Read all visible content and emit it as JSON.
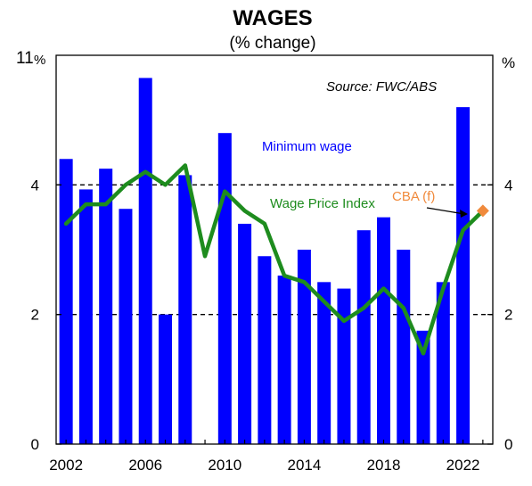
{
  "chart_data": {
    "type": "bar",
    "title": "WAGES",
    "subtitle": "(% change)",
    "source": "Source: FWC/ABS",
    "ylabel_left": "%",
    "ylabel_right": "%",
    "ylim": [
      0,
      6
    ],
    "yticks": [
      0,
      2,
      4
    ],
    "gridlines_dashed_at": [
      2,
      4
    ],
    "xlim": [
      2001.5,
      2023.5
    ],
    "xticks": [
      2002,
      2006,
      2010,
      2014,
      2018,
      2022
    ],
    "series": [
      {
        "name": "Minimum wage",
        "type": "bar",
        "color": "#0000ff",
        "x": [
          2002,
          2003,
          2004,
          2005,
          2006,
          2007,
          2008,
          2009,
          2010,
          2011,
          2012,
          2013,
          2014,
          2015,
          2016,
          2017,
          2018,
          2019,
          2020,
          2021,
          2022
        ],
        "values": [
          4.4,
          3.93,
          4.25,
          3.63,
          5.65,
          2.0,
          4.15,
          0.0,
          4.8,
          3.4,
          2.9,
          2.6,
          3.0,
          2.5,
          2.4,
          3.3,
          3.5,
          3.0,
          1.75,
          2.5,
          5.2
        ]
      },
      {
        "name": "Wage Price Index",
        "type": "line",
        "color": "#1e8c1e",
        "x": [
          2002,
          2003,
          2004,
          2005,
          2006,
          2007,
          2008,
          2009,
          2010,
          2011,
          2012,
          2013,
          2014,
          2015,
          2016,
          2017,
          2018,
          2019,
          2020,
          2021,
          2022,
          2023
        ],
        "values": [
          3.4,
          3.7,
          3.7,
          4.0,
          4.2,
          4.0,
          4.3,
          2.9,
          3.9,
          3.6,
          3.4,
          2.6,
          2.5,
          2.2,
          1.9,
          2.1,
          2.4,
          2.1,
          1.4,
          2.4,
          3.3,
          3.6
        ]
      },
      {
        "name": "CBA (f)",
        "type": "point",
        "color": "#f08a3c",
        "x": [
          2023
        ],
        "values": [
          3.6
        ]
      }
    ]
  }
}
